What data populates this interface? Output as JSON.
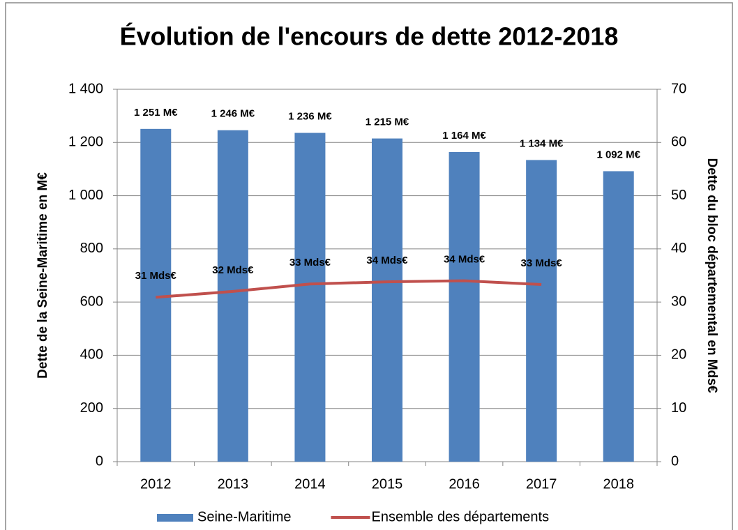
{
  "chart_data": {
    "type": "bar",
    "title": "Évolution de l'encours de dette 2012-2018",
    "y_label": "Dette de la Seine-Maritime en M€",
    "y2_label": "Dette du bloc départemental en Mds€",
    "categories": [
      "2012",
      "2013",
      "2014",
      "2015",
      "2016",
      "2017",
      "2018"
    ],
    "series": [
      {
        "name": "Seine-Maritime",
        "type": "bar",
        "color": "#4f81bd",
        "values": [
          1251,
          1246,
          1236,
          1215,
          1164,
          1134,
          1092
        ],
        "value_labels": [
          "1 251 M€",
          "1 246 M€",
          "1 236 M€",
          "1 215 M€",
          "1 164 M€",
          "1 134 M€",
          "1 092 M€"
        ]
      },
      {
        "name": "Ensemble des départements",
        "type": "line",
        "axis": "y2",
        "color": "#c0504d",
        "values": [
          30.9,
          32.0,
          33.4,
          33.8,
          34.0,
          33.3,
          null
        ],
        "value_labels": [
          "31 Mds€",
          "32 Mds€",
          "33 Mds€",
          "34 Mds€",
          "34 Mds€",
          "33 Mds€",
          null
        ]
      }
    ],
    "ylim": [
      0,
      1400
    ],
    "yticks": [
      0,
      200,
      400,
      600,
      800,
      {
        "value": 1000,
        "label": "1 000"
      },
      {
        "value": 1200,
        "label": "1 200"
      },
      {
        "value": 1400,
        "label": "1 400"
      }
    ],
    "y2lim": [
      0,
      70
    ],
    "y2ticks": [
      0,
      10,
      20,
      30,
      40,
      50,
      60,
      70
    ],
    "grid": true,
    "legend": "bottom"
  }
}
